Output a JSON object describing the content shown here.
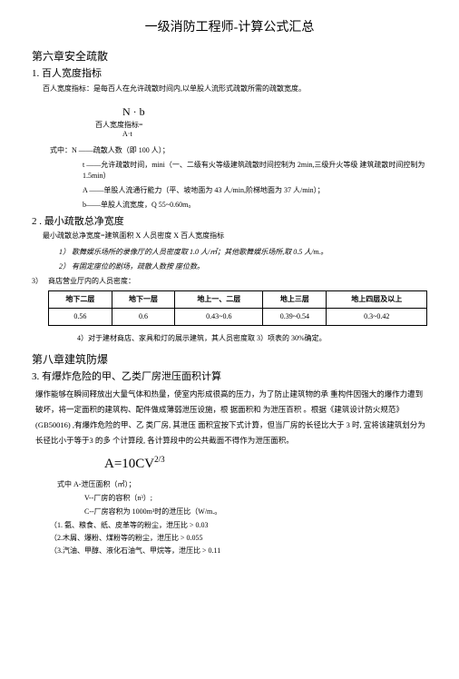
{
  "title": "一级消防工程师-计算公式汇总",
  "ch6": {
    "heading": "第六章安全疏散",
    "s1": {
      "heading": "1. 百人宽度指标",
      "desc": "百人宽度指标：是每百人在允许疏散时间内,以单股人流形式疏散所需的疏散宽度。",
      "formula_top": "N · b",
      "formula_label": "百人宽度指标=",
      "formula_bot": "A·t",
      "where_intro": "式中：N ——疏散人数（即 100 人）；",
      "where_t": "t ——允许疏散时间，mini（一、二级有火等级建筑疏散时间控制为 2min,三级升火等级  建筑疏散时间控制为 1.5min）",
      "where_A": "A ——单股人流通行能力（平、坡地面为 43 人/min,阶梯地面为 37 人/min）；",
      "where_b": "b——单股人流宽度，Q 55~0.60m。"
    },
    "s2": {
      "heading": "2 . 最小疏散总净宽度",
      "desc": "最小疏散总净宽度=建筑面积 X 人员密度 X 百人宽度指标",
      "item1": "1）   歌舞娱乐场所的录像厅的人员密度取 1.0 人/㎡；其他歌舞娱乐场所,取 0.5 人/m.。",
      "item2": "2）   有固定座位的剧场，疏散人数按 座位数。"
    },
    "s3": {
      "label": "3）",
      "heading": "商店营业厅内的人员密度：",
      "table": {
        "headers": [
          "地下二层",
          "地下一层",
          "地上一、二层",
          "地上三层",
          "地上四层及以上"
        ],
        "row": [
          "0.56",
          "0.6",
          "0.43~0.6",
          "0.39~0.54",
          "0.3~0.42"
        ]
      },
      "note": "4）对于建材商店、家具和灯的展示建筑，其人员密度取 3）项表的 30%确定。"
    }
  },
  "ch8": {
    "heading": "第八章建筑防爆",
    "s3": {
      "heading": "3.    有爆炸危险的甲、乙类厂房泄压面积计算",
      "body": "爆作能够在瞬间释放出大量气体和热量，使室内形成很高的压力，为了防止建筑物的承 重构件因强大的爆作力遭到破坏，将一定面积的建筑构、配件做成薄弱泄压设施，根  据面积和 为泄压百积 。根据《建筑设计防火规范》(GB50016) ,有爆炸危险的甲、乙 类厂房, 其泄压 面积宜按下式计算，但当厂房的长径比大于 3 时, 宜将该建筑划分为长径比小于等于3 的多 个计算段, 各计算段中的公共截面不得作为泄压面积。",
      "formula": "A=10CV",
      "formula_sup": "2/3",
      "where_intro": "式中 A-泄压面积（㎡）；",
      "where_V": "V--厂房的容积（n³）;",
      "where_C": "C--厂房容积为 1000m³时的泄压比（W/m.。",
      "li1": "（1.   氨、粮食、纸、皮革等的粉尘，泄压比 > 0.03",
      "li2": "（2.木屑、爆粉、煤粉等的粉尘，泄压比 > 0.055",
      "li3": "（3.汽油、甲醇、液化石油气、甲烷等，泄压比 > 0.11"
    }
  }
}
